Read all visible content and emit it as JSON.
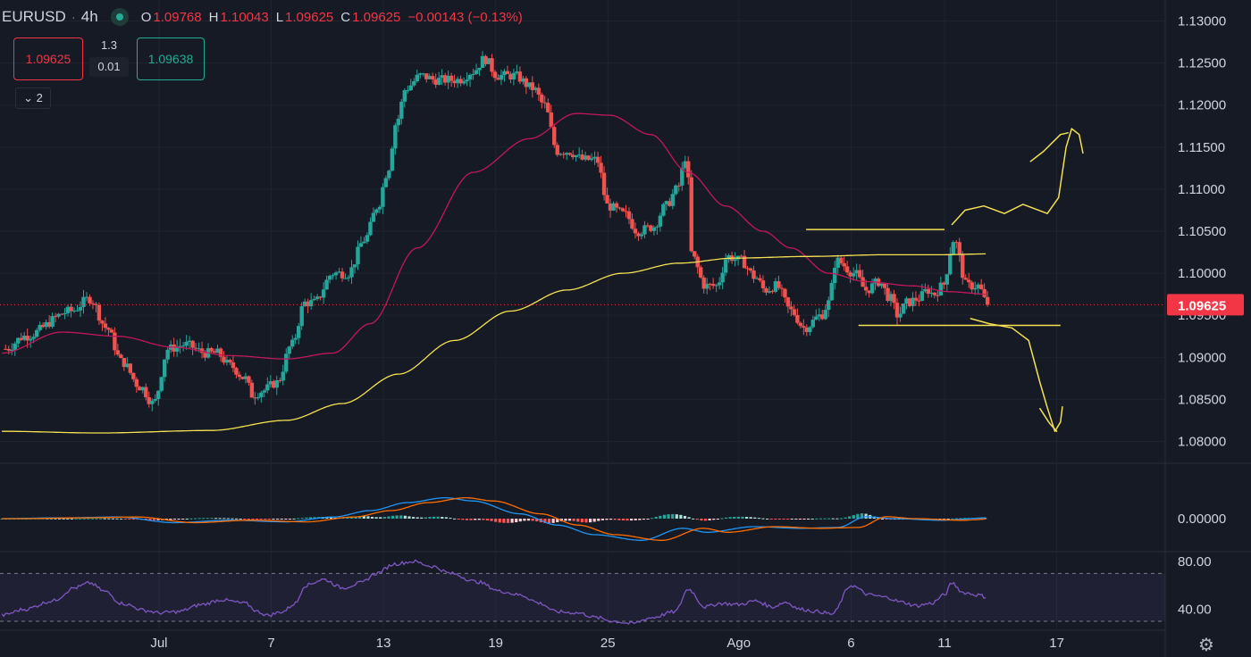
{
  "header": {
    "symbol": "EURUSD",
    "separator": "·",
    "timeframe": "4h",
    "open_label": "O",
    "open": "1.09768",
    "high_label": "H",
    "high": "1.10043",
    "low_label": "L",
    "low": "1.09625",
    "close_label": "C",
    "close": "1.09625",
    "change": "−0.00143 (−0.13%)"
  },
  "trade": {
    "sell_price": "1.09625",
    "spread_top": "1.3",
    "spread_bottom": "0.01",
    "buy_price": "1.09638",
    "indicators_toggle": "2"
  },
  "icons": {
    "settings": "gear-icon",
    "live": "live-dot-icon"
  },
  "colors": {
    "up": "#26a69a",
    "down": "#ef5350",
    "ma_fast": "#c2185b",
    "ma_slow": "#f5e151",
    "macd": "#2196f3",
    "signal": "#ff6d00",
    "rsi": "#7e57c2",
    "drawing": "#f5e151",
    "price_tag": "#f23645"
  },
  "chart_data": [
    {
      "type": "candlestick",
      "symbol": "EURUSD",
      "timeframe": "4h",
      "y_ticks": [
        "1.13000",
        "1.12500",
        "1.12000",
        "1.11500",
        "1.11000",
        "1.10500",
        "1.10000",
        "1.09500",
        "1.09000",
        "1.08500",
        "1.08000"
      ],
      "ylim": [
        1.0775,
        1.1325
      ],
      "x_ticks": [
        {
          "label": "Jul",
          "day": -0.8
        },
        {
          "label": "7",
          "day": 5.2
        },
        {
          "label": "13",
          "day": 11.2
        },
        {
          "label": "19",
          "day": 17.2
        },
        {
          "label": "25",
          "day": 23.2
        },
        {
          "label": "Ago",
          "day": 30.2
        },
        {
          "label": "6",
          "day": 36.2
        },
        {
          "label": "11",
          "day": 41.2
        },
        {
          "label": "17",
          "day": 47.2
        }
      ],
      "xlim": [
        -9.3,
        53.0
      ],
      "last_price": "1.09625",
      "anchors": [
        [
          -9.0,
          1.091
        ],
        [
          -8.0,
          1.0925
        ],
        [
          -5.5,
          1.0955
        ],
        [
          -4.5,
          1.097
        ],
        [
          -3.6,
          1.0935
        ],
        [
          -2.8,
          1.0895
        ],
        [
          -1.8,
          1.0865
        ],
        [
          -1.1,
          1.0845
        ],
        [
          -0.3,
          1.091
        ],
        [
          0.6,
          1.0915
        ],
        [
          1.7,
          1.0905
        ],
        [
          2.3,
          1.0905
        ],
        [
          3.0,
          1.089
        ],
        [
          3.8,
          1.0875
        ],
        [
          4.2,
          1.0855
        ],
        [
          4.7,
          1.086
        ],
        [
          5.5,
          1.087
        ],
        [
          6.3,
          1.0915
        ],
        [
          7.0,
          1.0965
        ],
        [
          7.5,
          1.0965
        ],
        [
          8.5,
          1.1
        ],
        [
          9.3,
          1.1
        ],
        [
          10.2,
          1.104
        ],
        [
          10.9,
          1.108
        ],
        [
          11.4,
          1.112
        ],
        [
          11.9,
          1.118
        ],
        [
          12.4,
          1.122
        ],
        [
          13.2,
          1.1235
        ],
        [
          14.0,
          1.123
        ],
        [
          15.2,
          1.123
        ],
        [
          16.0,
          1.124
        ],
        [
          16.6,
          1.1255
        ],
        [
          17.3,
          1.1235
        ],
        [
          18.2,
          1.1235
        ],
        [
          19.2,
          1.122
        ],
        [
          19.8,
          1.12
        ],
        [
          20.5,
          1.1145
        ],
        [
          21.1,
          1.1145
        ],
        [
          21.9,
          1.1135
        ],
        [
          22.6,
          1.1135
        ],
        [
          23.2,
          1.108
        ],
        [
          24.1,
          1.107
        ],
        [
          24.8,
          1.105
        ],
        [
          25.6,
          1.1055
        ],
        [
          26.3,
          1.108
        ],
        [
          26.9,
          1.11
        ],
        [
          27.4,
          1.114
        ],
        [
          27.7,
          1.102
        ],
        [
          28.4,
          1.0985
        ],
        [
          29.0,
          1.0985
        ],
        [
          29.6,
          1.102
        ],
        [
          30.3,
          1.1015
        ],
        [
          31.1,
          1.0995
        ],
        [
          31.6,
          1.098
        ],
        [
          32.2,
          1.0985
        ],
        [
          33.0,
          1.0955
        ],
        [
          33.7,
          1.0935
        ],
        [
          34.6,
          1.095
        ],
        [
          35.0,
          1.0965
        ],
        [
          35.4,
          1.1015
        ],
        [
          36.4,
          1.1
        ],
        [
          37.0,
          1.098
        ],
        [
          37.7,
          1.099
        ],
        [
          38.3,
          1.097
        ],
        [
          38.7,
          1.095
        ],
        [
          39.2,
          1.0965
        ],
        [
          39.8,
          1.097
        ],
        [
          40.3,
          1.098
        ],
        [
          40.6,
          1.0975
        ],
        [
          41.1,
          1.0985
        ],
        [
          41.7,
          1.104
        ],
        [
          42.4,
          1.0985
        ],
        [
          43.0,
          1.0985
        ],
        [
          43.5,
          1.09625
        ]
      ],
      "series": [
        {
          "name": "MA fast",
          "color": "#c2185b",
          "points": [
            [
              -9.2,
              1.0905
            ],
            [
              -6.0,
              1.093
            ],
            [
              -3.0,
              1.0925
            ],
            [
              0.0,
              1.0912
            ],
            [
              3.0,
              1.0902
            ],
            [
              6.0,
              1.0898
            ],
            [
              8.5,
              1.0905
            ],
            [
              10.5,
              1.094
            ],
            [
              13.0,
              1.103
            ],
            [
              16.0,
              1.112
            ],
            [
              19.0,
              1.116
            ],
            [
              21.5,
              1.119
            ],
            [
              23.3,
              1.1188
            ],
            [
              25.5,
              1.1165
            ],
            [
              27.5,
              1.112
            ],
            [
              29.5,
              1.108
            ],
            [
              31.5,
              1.105
            ],
            [
              33.0,
              1.103
            ],
            [
              35.0,
              1.1
            ],
            [
              37.0,
              1.099
            ],
            [
              39.5,
              1.0985
            ],
            [
              41.5,
              1.0978
            ],
            [
              43.5,
              1.0975
            ]
          ]
        },
        {
          "name": "MA slow",
          "color": "#f5e151",
          "points": [
            [
              -9.2,
              1.0812
            ],
            [
              -4.0,
              1.081
            ],
            [
              2.0,
              1.0813
            ],
            [
              6.0,
              1.0825
            ],
            [
              9.0,
              1.0845
            ],
            [
              12.0,
              1.088
            ],
            [
              15.0,
              1.092
            ],
            [
              18.0,
              1.0955
            ],
            [
              21.0,
              1.098
            ],
            [
              24.0,
              1.1
            ],
            [
              27.0,
              1.1012
            ],
            [
              30.0,
              1.1018
            ],
            [
              34.0,
              1.102
            ],
            [
              38.0,
              1.1022
            ],
            [
              41.0,
              1.1022
            ],
            [
              43.5,
              1.1023
            ]
          ]
        }
      ],
      "drawings": [
        {
          "kind": "hline",
          "from_day": 33.8,
          "to_day": 41.2,
          "y": 1.1052
        },
        {
          "kind": "hline",
          "from_day": 36.6,
          "to_day": 47.4,
          "y": 1.0938
        },
        {
          "kind": "path",
          "points": [
            [
              41.6,
              1.1058
            ],
            [
              42.3,
              1.1075
            ],
            [
              43.3,
              1.108
            ],
            [
              44.4,
              1.1071
            ],
            [
              45.4,
              1.1082
            ],
            [
              46.7,
              1.1071
            ],
            [
              47.3,
              1.109
            ],
            [
              47.7,
              1.115
            ],
            [
              48.0,
              1.1172
            ],
            [
              48.4,
              1.1165
            ],
            [
              48.6,
              1.1143
            ]
          ]
        },
        {
          "kind": "path",
          "points": [
            [
              45.8,
              1.1133
            ],
            [
              46.5,
              1.1145
            ],
            [
              47.4,
              1.1165
            ],
            [
              47.8,
              1.1167
            ]
          ]
        },
        {
          "kind": "path",
          "points": [
            [
              42.6,
              1.0946
            ],
            [
              43.6,
              1.094
            ],
            [
              44.8,
              1.0935
            ],
            [
              45.7,
              1.092
            ],
            [
              46.3,
              1.087
            ],
            [
              46.7,
              1.084
            ],
            [
              47.1,
              1.0812
            ],
            [
              47.4,
              1.0823
            ],
            [
              47.5,
              1.0841
            ]
          ]
        },
        {
          "kind": "path",
          "points": [
            [
              46.3,
              1.0839
            ],
            [
              46.8,
              1.0822
            ],
            [
              47.2,
              1.0812
            ]
          ]
        }
      ]
    },
    {
      "type": "line",
      "name": "MACD",
      "y_ticks": [
        "0.00000"
      ],
      "anchors": [
        [
          -9.2,
          0.0
        ],
        [
          -6.0,
          0.05
        ],
        [
          -3.0,
          0.1
        ],
        [
          0.0,
          -0.25
        ],
        [
          3.0,
          -0.1
        ],
        [
          6.0,
          -0.2
        ],
        [
          8.5,
          0.1
        ],
        [
          10.5,
          0.5
        ],
        [
          12.5,
          1.0
        ],
        [
          14.5,
          1.3
        ],
        [
          16.0,
          1.1
        ],
        [
          18.5,
          0.3
        ],
        [
          20.5,
          -0.4
        ],
        [
          22.5,
          -1.0
        ],
        [
          25.0,
          -1.35
        ],
        [
          27.2,
          -0.6
        ],
        [
          28.5,
          -0.85
        ],
        [
          31.0,
          -0.5
        ],
        [
          33.5,
          -0.6
        ],
        [
          35.5,
          -0.55
        ],
        [
          37.0,
          0.12
        ],
        [
          38.5,
          0.0
        ],
        [
          41.0,
          -0.1
        ],
        [
          43.5,
          0.05
        ]
      ],
      "series": [
        {
          "color": "#2196f3"
        },
        {
          "color": "#ff6d00"
        }
      ]
    },
    {
      "type": "line",
      "name": "RSI",
      "y_ticks": [
        "80.00",
        "40.00"
      ],
      "levels": [
        70,
        30
      ],
      "ylim": [
        24,
        86
      ],
      "anchors": [
        [
          -9.2,
          35
        ],
        [
          -8.0,
          40
        ],
        [
          -6.5,
          47
        ],
        [
          -5.3,
          58
        ],
        [
          -4.5,
          62
        ],
        [
          -3.7,
          55
        ],
        [
          -2.8,
          45
        ],
        [
          -1.5,
          39
        ],
        [
          -0.8,
          37
        ],
        [
          0.2,
          38
        ],
        [
          1.5,
          44
        ],
        [
          2.5,
          48
        ],
        [
          3.8,
          45
        ],
        [
          4.5,
          38
        ],
        [
          5.0,
          35
        ],
        [
          5.8,
          38
        ],
        [
          6.5,
          45
        ],
        [
          7.0,
          60
        ],
        [
          8.0,
          65
        ],
        [
          9.0,
          58
        ],
        [
          10.0,
          62
        ],
        [
          10.8,
          70
        ],
        [
          11.8,
          78
        ],
        [
          12.8,
          80
        ],
        [
          13.8,
          76
        ],
        [
          14.8,
          70
        ],
        [
          16.2,
          63
        ],
        [
          17.5,
          55
        ],
        [
          18.5,
          52
        ],
        [
          19.6,
          45
        ],
        [
          20.4,
          38
        ],
        [
          21.6,
          37
        ],
        [
          22.6,
          33
        ],
        [
          23.5,
          30
        ],
        [
          24.5,
          28
        ],
        [
          25.5,
          33
        ],
        [
          26.8,
          38
        ],
        [
          27.5,
          57
        ],
        [
          28.4,
          42
        ],
        [
          29.2,
          45
        ],
        [
          30.2,
          44
        ],
        [
          31.1,
          47
        ],
        [
          32.0,
          42
        ],
        [
          32.7,
          46
        ],
        [
          33.5,
          40
        ],
        [
          34.5,
          38
        ],
        [
          35.2,
          36
        ],
        [
          36.2,
          60
        ],
        [
          37.2,
          52
        ],
        [
          38.1,
          50
        ],
        [
          38.9,
          46
        ],
        [
          39.7,
          43
        ],
        [
          40.5,
          45
        ],
        [
          41.2,
          52
        ],
        [
          41.6,
          62
        ],
        [
          42.2,
          54
        ],
        [
          43.0,
          52
        ],
        [
          43.5,
          50
        ]
      ]
    }
  ]
}
